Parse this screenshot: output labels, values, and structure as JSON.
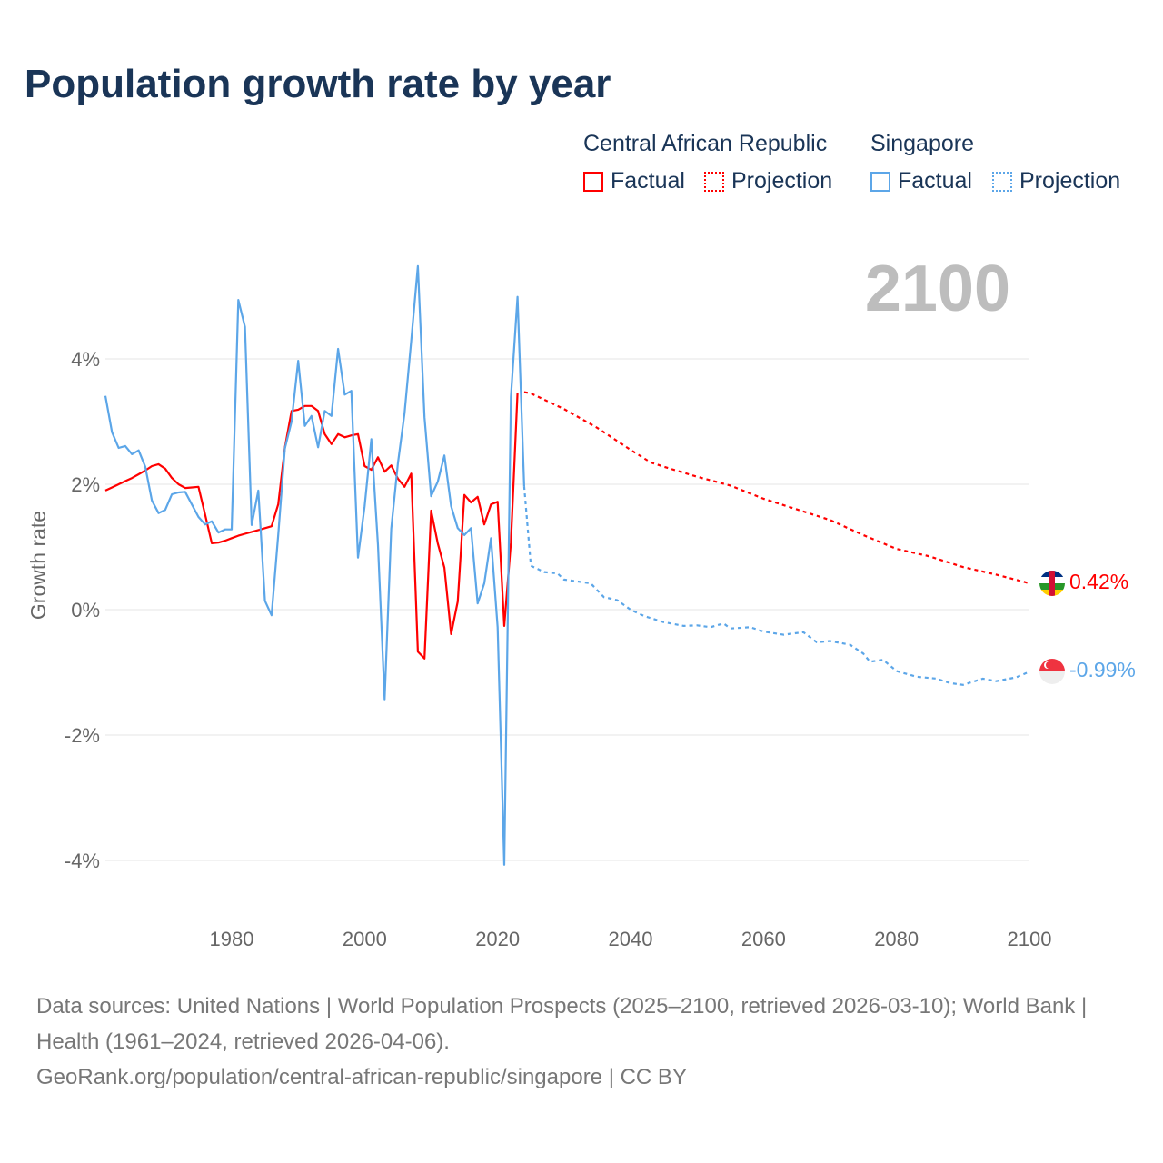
{
  "title": "Population growth rate by year",
  "legend": {
    "groups": [
      {
        "name": "Central African Republic",
        "factual": "Factual",
        "projection": "Projection",
        "color": "#ff0000"
      },
      {
        "name": "Singapore",
        "factual": "Factual",
        "projection": "Projection",
        "color": "#5ca6e8"
      }
    ]
  },
  "year_label": "2100",
  "footer": {
    "line1": "Data sources: United Nations | World Population Prospects (2025–2100, retrieved 2026-03-10); World Bank | Health (1961–2024, retrieved 2026-04-06).",
    "line2": "GeoRank.org/population/central-african-republic/singapore | CC BY"
  },
  "chart_data": {
    "type": "line",
    "title": "Population growth rate by year",
    "xlabel": "",
    "ylabel": "Growth rate",
    "xlim": [
      1961,
      2100
    ],
    "ylim": [
      -4.6,
      5.6
    ],
    "xticks": [
      1980,
      2000,
      2020,
      2040,
      2060,
      2080,
      2100
    ],
    "xtick_labels": [
      "1980",
      "2000",
      "2020",
      "2040",
      "2060",
      "2080",
      "2100"
    ],
    "yticks": [
      4,
      2,
      0,
      -2,
      -4
    ],
    "ytick_labels": [
      "4%",
      "2%",
      "0%",
      "-2%",
      "-4%"
    ],
    "grid": true,
    "legend_position": "top-right",
    "series": [
      {
        "name": "Central African Republic Factual",
        "color": "#ff0000",
        "dashed": false,
        "points": [
          [
            1961,
            1.9
          ],
          [
            1962,
            1.95
          ],
          [
            1963,
            2.0
          ],
          [
            1964,
            2.05
          ],
          [
            1965,
            2.1
          ],
          [
            1966,
            2.16
          ],
          [
            1967,
            2.22
          ],
          [
            1968,
            2.29
          ],
          [
            1969,
            2.32
          ],
          [
            1970,
            2.25
          ],
          [
            1971,
            2.1
          ],
          [
            1972,
            2.0
          ],
          [
            1973,
            1.94
          ],
          [
            1974,
            1.95
          ],
          [
            1975,
            1.96
          ],
          [
            1976,
            1.52
          ],
          [
            1977,
            1.06
          ],
          [
            1978,
            1.07
          ],
          [
            1979,
            1.1
          ],
          [
            1980,
            1.14
          ],
          [
            1981,
            1.18
          ],
          [
            1982,
            1.21
          ],
          [
            1983,
            1.24
          ],
          [
            1984,
            1.27
          ],
          [
            1985,
            1.3
          ],
          [
            1986,
            1.33
          ],
          [
            1987,
            1.68
          ],
          [
            1988,
            2.58
          ],
          [
            1989,
            3.17
          ],
          [
            1990,
            3.19
          ],
          [
            1991,
            3.25
          ],
          [
            1992,
            3.25
          ],
          [
            1993,
            3.17
          ],
          [
            1994,
            2.8
          ],
          [
            1995,
            2.64
          ],
          [
            1996,
            2.8
          ],
          [
            1997,
            2.75
          ],
          [
            1998,
            2.78
          ],
          [
            1999,
            2.8
          ],
          [
            2000,
            2.29
          ],
          [
            2001,
            2.23
          ],
          [
            2002,
            2.43
          ],
          [
            2003,
            2.2
          ],
          [
            2004,
            2.3
          ],
          [
            2005,
            2.09
          ],
          [
            2006,
            1.96
          ],
          [
            2007,
            2.17
          ],
          [
            2008,
            -0.67
          ],
          [
            2009,
            -0.78
          ],
          [
            2010,
            1.58
          ],
          [
            2011,
            1.06
          ],
          [
            2012,
            0.67
          ],
          [
            2013,
            -0.39
          ],
          [
            2014,
            0.13
          ],
          [
            2015,
            1.83
          ],
          [
            2016,
            1.71
          ],
          [
            2017,
            1.8
          ],
          [
            2018,
            1.36
          ],
          [
            2019,
            1.68
          ],
          [
            2020,
            1.72
          ],
          [
            2021,
            -0.26
          ],
          [
            2022,
            1.07
          ],
          [
            2023,
            3.46
          ]
        ]
      },
      {
        "name": "Central African Republic Projection",
        "color": "#ff0000",
        "dashed": true,
        "points": [
          [
            2024,
            3.47
          ],
          [
            2025,
            3.45
          ],
          [
            2028,
            3.3
          ],
          [
            2030,
            3.2
          ],
          [
            2035,
            2.9
          ],
          [
            2040,
            2.55
          ],
          [
            2043,
            2.35
          ],
          [
            2045,
            2.28
          ],
          [
            2050,
            2.12
          ],
          [
            2055,
            1.98
          ],
          [
            2060,
            1.77
          ],
          [
            2065,
            1.6
          ],
          [
            2070,
            1.43
          ],
          [
            2075,
            1.19
          ],
          [
            2080,
            0.97
          ],
          [
            2085,
            0.85
          ],
          [
            2090,
            0.68
          ],
          [
            2095,
            0.56
          ],
          [
            2100,
            0.42
          ]
        ]
      },
      {
        "name": "Singapore Factual",
        "color": "#5ca6e8",
        "dashed": false,
        "points": [
          [
            1961,
            3.41
          ],
          [
            1962,
            2.83
          ],
          [
            1963,
            2.58
          ],
          [
            1964,
            2.61
          ],
          [
            1965,
            2.48
          ],
          [
            1966,
            2.54
          ],
          [
            1967,
            2.28
          ],
          [
            1968,
            1.74
          ],
          [
            1969,
            1.54
          ],
          [
            1970,
            1.59
          ],
          [
            1971,
            1.84
          ],
          [
            1972,
            1.87
          ],
          [
            1973,
            1.88
          ],
          [
            1974,
            1.68
          ],
          [
            1975,
            1.48
          ],
          [
            1976,
            1.36
          ],
          [
            1977,
            1.41
          ],
          [
            1978,
            1.23
          ],
          [
            1979,
            1.28
          ],
          [
            1980,
            1.28
          ],
          [
            1981,
            4.94
          ],
          [
            1982,
            4.51
          ],
          [
            1983,
            1.35
          ],
          [
            1984,
            1.9
          ],
          [
            1985,
            0.14
          ],
          [
            1986,
            -0.09
          ],
          [
            1987,
            1.19
          ],
          [
            1988,
            2.57
          ],
          [
            1989,
            3.0
          ],
          [
            1990,
            3.97
          ],
          [
            1991,
            2.93
          ],
          [
            1992,
            3.09
          ],
          [
            1993,
            2.59
          ],
          [
            1994,
            3.17
          ],
          [
            1995,
            3.09
          ],
          [
            1996,
            4.16
          ],
          [
            1997,
            3.43
          ],
          [
            1998,
            3.49
          ],
          [
            1999,
            0.83
          ],
          [
            2000,
            1.65
          ],
          [
            2001,
            2.72
          ],
          [
            2002,
            1.03
          ],
          [
            2003,
            -1.43
          ],
          [
            2004,
            1.29
          ],
          [
            2005,
            2.33
          ],
          [
            2006,
            3.13
          ],
          [
            2007,
            4.29
          ],
          [
            2008,
            5.48
          ],
          [
            2009,
            3.07
          ],
          [
            2010,
            1.81
          ],
          [
            2011,
            2.04
          ],
          [
            2012,
            2.46
          ],
          [
            2013,
            1.65
          ],
          [
            2014,
            1.3
          ],
          [
            2015,
            1.19
          ],
          [
            2016,
            1.3
          ],
          [
            2017,
            0.1
          ],
          [
            2018,
            0.42
          ],
          [
            2019,
            1.14
          ],
          [
            2020,
            -0.28
          ],
          [
            2021,
            -4.07
          ],
          [
            2022,
            3.39
          ],
          [
            2023,
            4.99
          ],
          [
            2024,
            1.97
          ]
        ]
      },
      {
        "name": "Singapore Projection",
        "color": "#5ca6e8",
        "dashed": true,
        "points": [
          [
            2024,
            1.97
          ],
          [
            2025,
            0.7
          ],
          [
            2027,
            0.6
          ],
          [
            2029,
            0.58
          ],
          [
            2030,
            0.48
          ],
          [
            2034,
            0.42
          ],
          [
            2036,
            0.2
          ],
          [
            2038,
            0.15
          ],
          [
            2040,
            0.0
          ],
          [
            2042,
            -0.1
          ],
          [
            2045,
            -0.2
          ],
          [
            2048,
            -0.26
          ],
          [
            2050,
            -0.25
          ],
          [
            2052,
            -0.28
          ],
          [
            2054,
            -0.22
          ],
          [
            2055,
            -0.3
          ],
          [
            2058,
            -0.28
          ],
          [
            2060,
            -0.35
          ],
          [
            2063,
            -0.4
          ],
          [
            2066,
            -0.36
          ],
          [
            2068,
            -0.52
          ],
          [
            2070,
            -0.5
          ],
          [
            2073,
            -0.56
          ],
          [
            2075,
            -0.7
          ],
          [
            2076,
            -0.83
          ],
          [
            2078,
            -0.8
          ],
          [
            2080,
            -0.98
          ],
          [
            2083,
            -1.07
          ],
          [
            2086,
            -1.1
          ],
          [
            2088,
            -1.17
          ],
          [
            2090,
            -1.2
          ],
          [
            2093,
            -1.1
          ],
          [
            2095,
            -1.14
          ],
          [
            2098,
            -1.08
          ],
          [
            2100,
            -0.99
          ]
        ]
      }
    ],
    "end_labels": [
      {
        "country": "Central African Republic",
        "value": "0.42%",
        "color": "#ff0000"
      },
      {
        "country": "Singapore",
        "value": "-0.99%",
        "color": "#5ca6e8"
      }
    ]
  }
}
